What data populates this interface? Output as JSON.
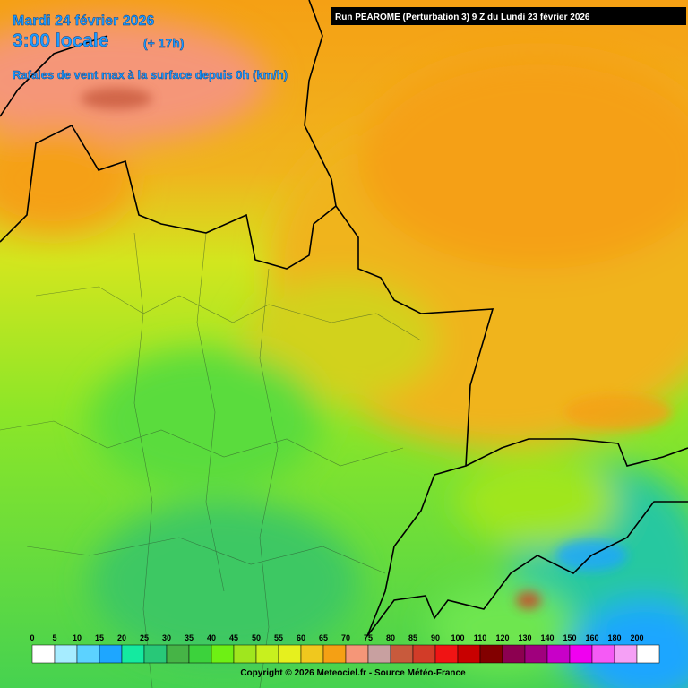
{
  "header": {
    "date": "Mardi 24 février 2026",
    "time": "3:00 locale",
    "offset": "(+ 17h)",
    "parameter": "Rafales de vent max à la surface depuis 0h (km/h)",
    "run": "Run PEAROME (Perturbation 3) 9 Z du Lundi 23 février 2026"
  },
  "legend": {
    "items": [
      {
        "label": 0,
        "color": "#ffffff"
      },
      {
        "label": 5,
        "color": "#a6ecff"
      },
      {
        "label": 10,
        "color": "#5cd2ff"
      },
      {
        "label": 15,
        "color": "#1ea6ff"
      },
      {
        "label": 20,
        "color": "#14eaa0"
      },
      {
        "label": 25,
        "color": "#28c878"
      },
      {
        "label": 30,
        "color": "#46b446"
      },
      {
        "label": 35,
        "color": "#3cd23c"
      },
      {
        "label": 40,
        "color": "#6ef014"
      },
      {
        "label": 45,
        "color": "#a0e61e"
      },
      {
        "label": 50,
        "color": "#c8f01e"
      },
      {
        "label": 55,
        "color": "#e6f01e"
      },
      {
        "label": 60,
        "color": "#f0c81e"
      },
      {
        "label": 65,
        "color": "#f5a014"
      },
      {
        "label": 70,
        "color": "#f59678"
      },
      {
        "label": 75,
        "color": "#c8a0a0"
      },
      {
        "label": 80,
        "color": "#c85a3c"
      },
      {
        "label": 85,
        "color": "#d23c28"
      },
      {
        "label": 90,
        "color": "#f01414"
      },
      {
        "label": 100,
        "color": "#c80000"
      },
      {
        "label": 110,
        "color": "#820000"
      },
      {
        "label": 120,
        "color": "#8c0050"
      },
      {
        "label": 130,
        "color": "#a0007d"
      },
      {
        "label": 140,
        "color": "#c800c8"
      },
      {
        "label": 150,
        "color": "#f000f0"
      },
      {
        "label": 160,
        "color": "#f55af5"
      },
      {
        "label": 180,
        "color": "#f5a0f5"
      },
      {
        "label": 200,
        "color": "#ffffff"
      }
    ]
  },
  "footer": {
    "copyright": "Copyright © 2026 Meteociel.fr - Source Météo-France"
  }
}
